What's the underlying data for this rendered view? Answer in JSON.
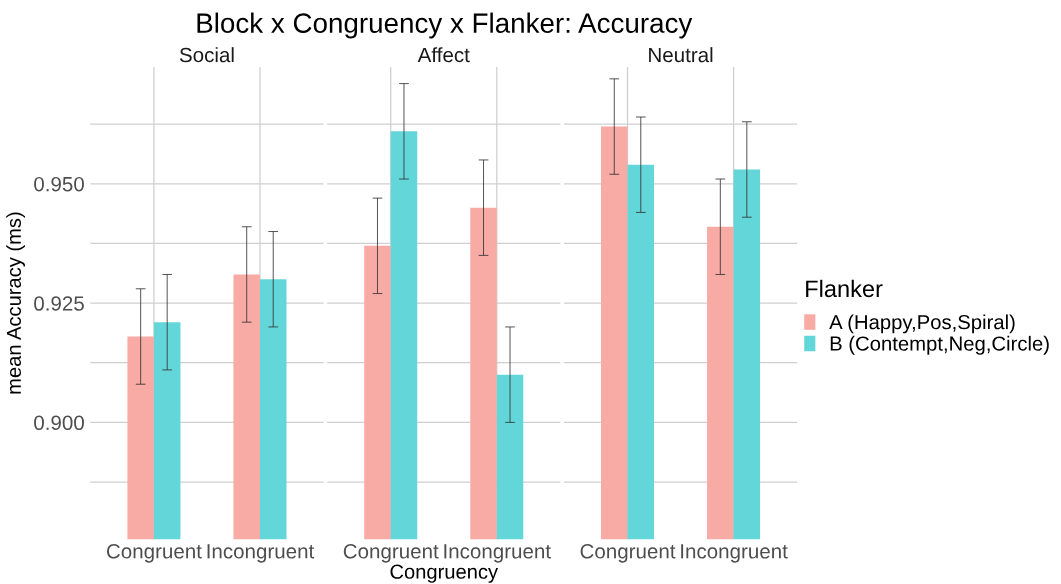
{
  "chart_data": [
    {
      "type": "bar",
      "title": "Block x Congruency x Flanker: Accuracy",
      "subtitle": "Social",
      "ylabel": "mean Accuracy (ms)",
      "categories": [
        "Congruent",
        "Incongruent"
      ],
      "series": [
        {
          "color": "#f8aaa5",
          "values": [
            0.918,
            0.931
          ],
          "errors": [
            0.01,
            0.01
          ]
        },
        {
          "color": "#63d6d9",
          "values": [
            0.921,
            0.93
          ],
          "errors": [
            0.01,
            0.01
          ]
        }
      ],
      "ylim": [
        0.8755,
        0.9745
      ],
      "yticks": [
        {
          "value": 0.8875,
          "label": null
        },
        {
          "value": 0.9,
          "label": "0.900"
        },
        {
          "value": 0.9125,
          "label": null
        },
        {
          "value": 0.925,
          "label": "0.925"
        },
        {
          "value": 0.9375,
          "label": null
        },
        {
          "value": 0.95,
          "label": "0.950"
        },
        {
          "value": 0.9625,
          "label": null
        }
      ],
      "grid": true
    },
    {
      "type": "bar",
      "subtitle": "Affect",
      "xlabel": "Congruency",
      "categories": [
        "Congruent",
        "Incongruent"
      ],
      "series": [
        {
          "color": "#f8aaa5",
          "values": [
            0.937,
            0.945
          ],
          "errors": [
            0.01,
            0.01
          ]
        },
        {
          "color": "#63d6d9",
          "values": [
            0.961,
            0.91
          ],
          "errors": [
            0.01,
            0.01
          ]
        }
      ],
      "ylim": [
        0.8755,
        0.9745
      ],
      "yticks": [
        {
          "value": 0.8875,
          "label": null
        },
        {
          "value": 0.9,
          "label": null
        },
        {
          "value": 0.9125,
          "label": null
        },
        {
          "value": 0.925,
          "label": null
        },
        {
          "value": 0.9375,
          "label": null
        },
        {
          "value": 0.95,
          "label": null
        },
        {
          "value": 0.9625,
          "label": null
        }
      ],
      "grid": true,
      "tick_labels": "x"
    },
    {
      "type": "bar",
      "subtitle": "Neutral",
      "legend_title": "Flanker",
      "categories": [
        "Congruent",
        "Incongruent"
      ],
      "series": [
        {
          "name": "A (Happy,Pos,Spiral)",
          "color": "#f8aaa5",
          "values": [
            0.962,
            0.941
          ],
          "errors": [
            0.01,
            0.01
          ]
        },
        {
          "name": "B (Contempt,Neg,Circle)",
          "color": "#63d6d9",
          "values": [
            0.954,
            0.953
          ],
          "errors": [
            0.01,
            0.01
          ]
        }
      ],
      "ylim": [
        0.8755,
        0.9745
      ],
      "yticks": [
        {
          "value": 0.8875,
          "label": null
        },
        {
          "value": 0.9,
          "label": null
        },
        {
          "value": 0.9125,
          "label": null
        },
        {
          "value": 0.925,
          "label": null
        },
        {
          "value": 0.9375,
          "label": null
        },
        {
          "value": 0.95,
          "label": null
        },
        {
          "value": 0.9625,
          "label": null
        }
      ],
      "grid": true,
      "tick_labels": "x",
      "legend": "right"
    }
  ]
}
